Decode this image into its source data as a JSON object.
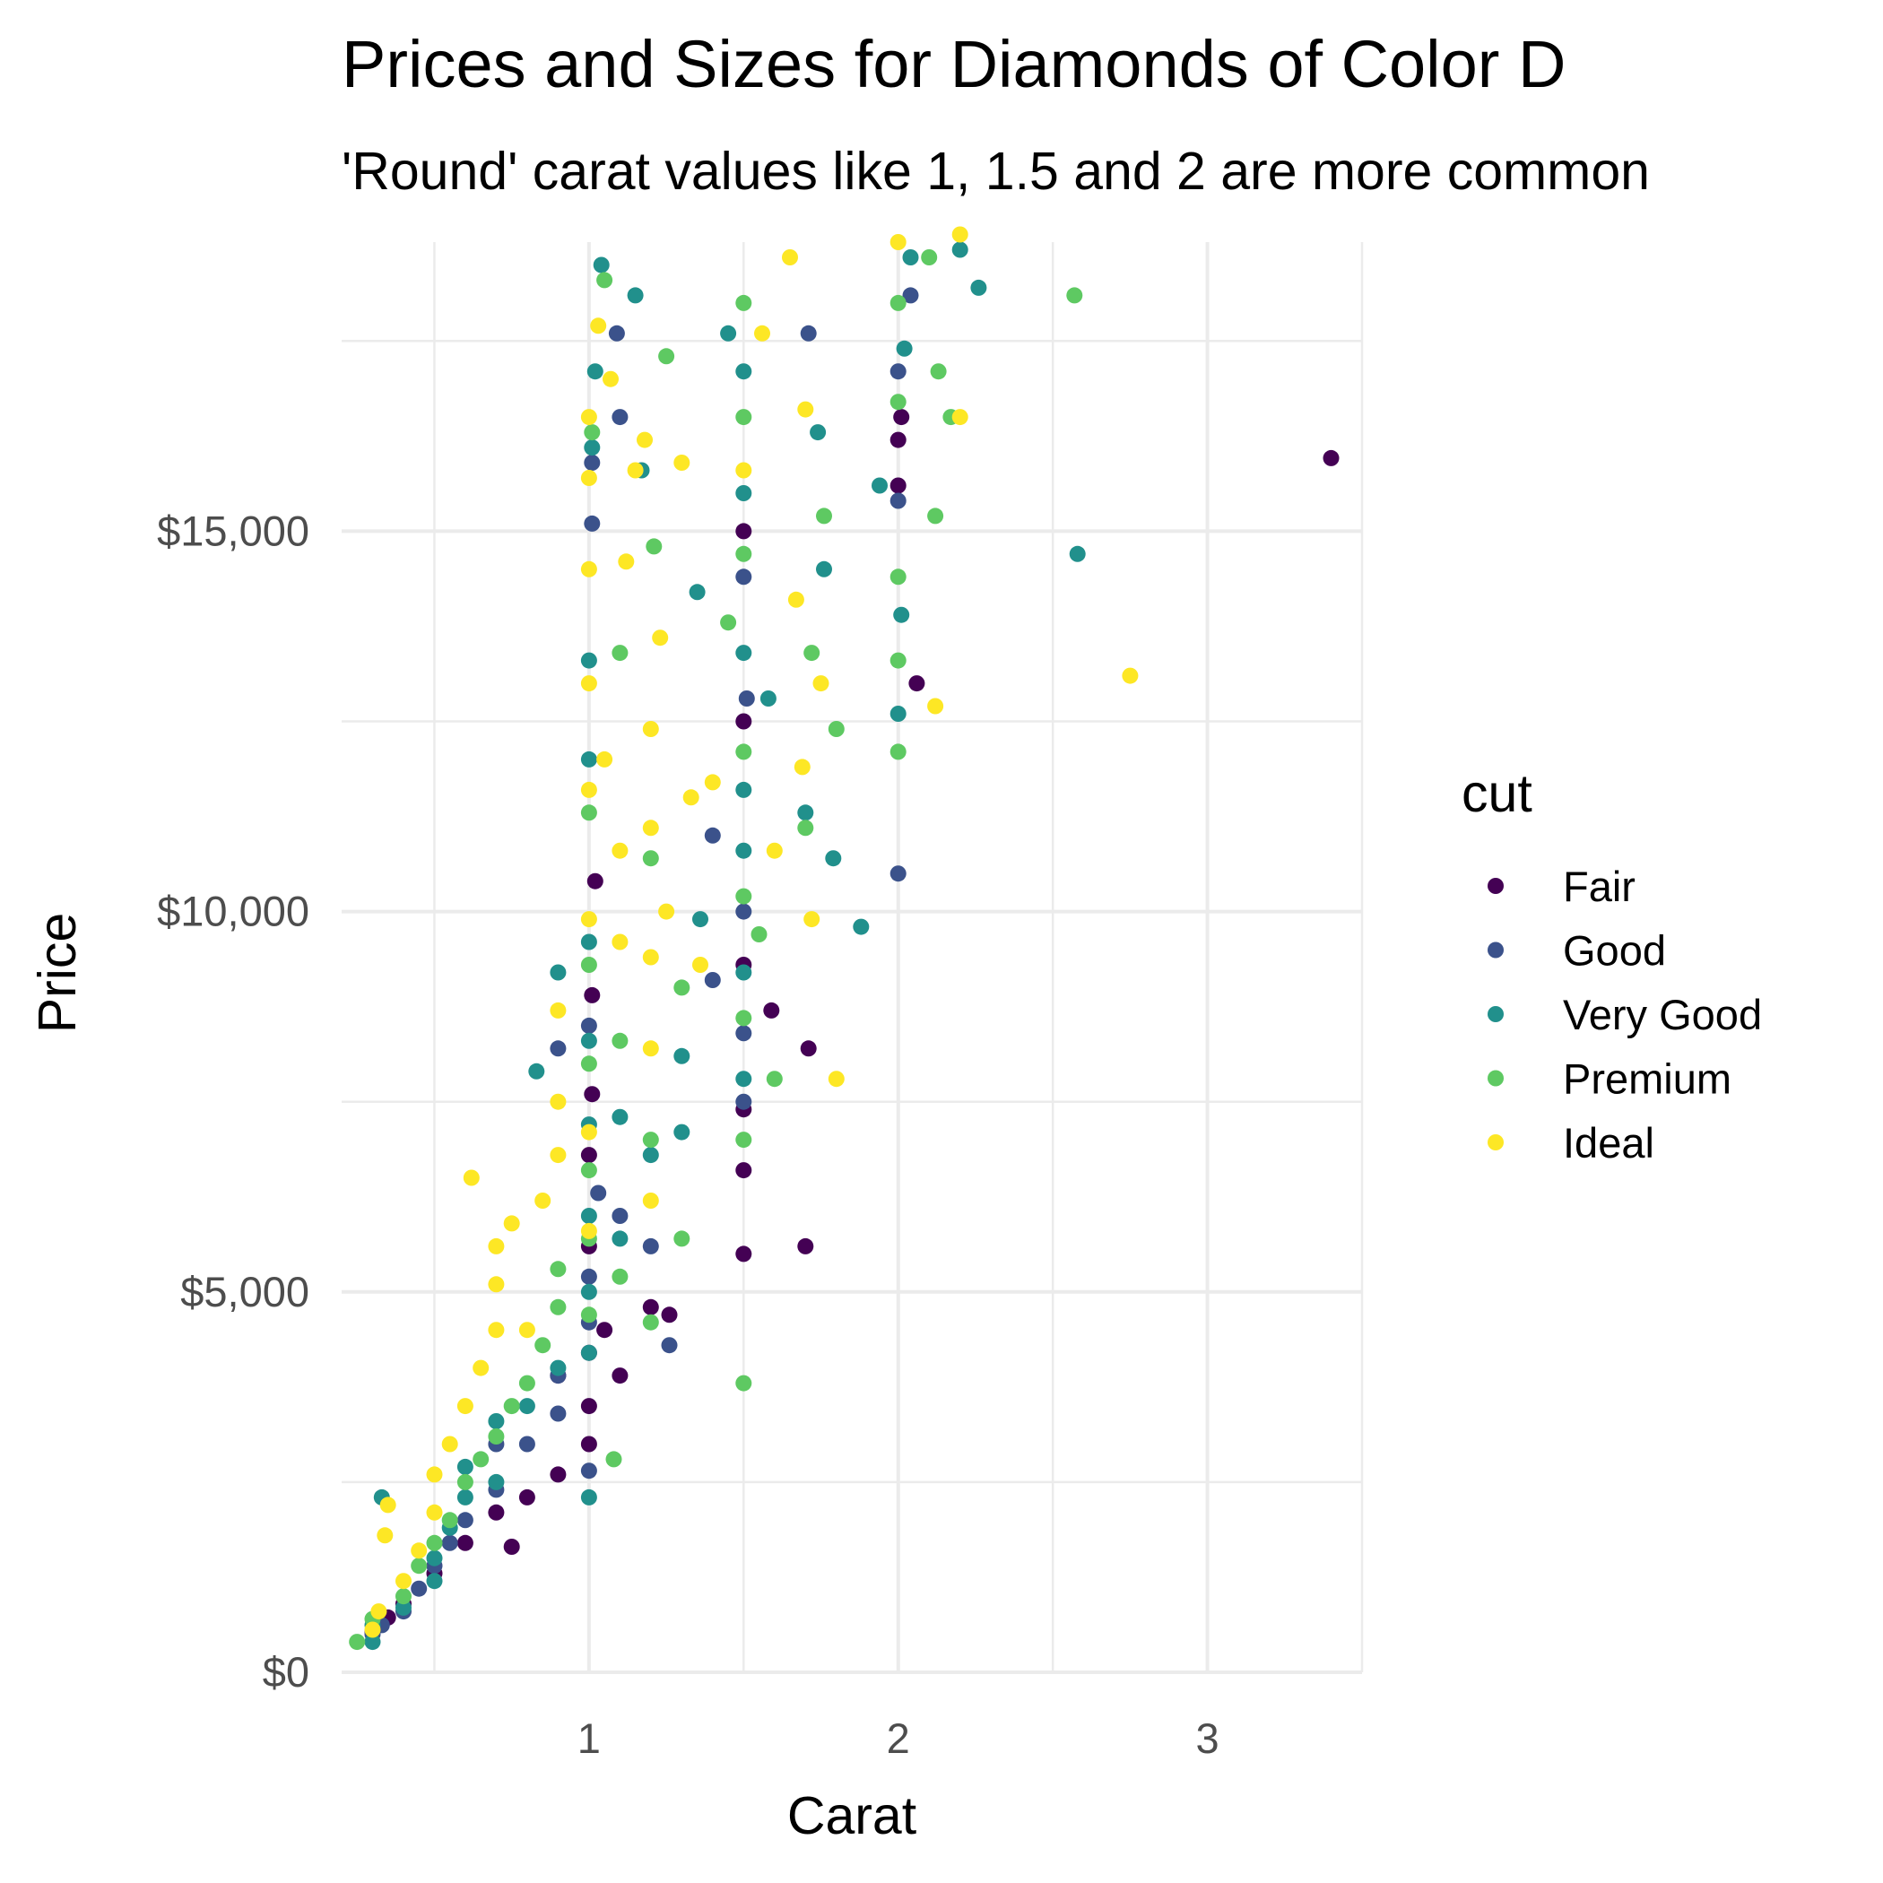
{
  "chart_data": {
    "type": "scatter",
    "title": "Prices and Sizes for Diamonds of Color D",
    "subtitle": "'Round' carat values like 1, 1.5 and 2 are more common",
    "xlabel": "Carat",
    "ylabel": "Price",
    "xlim": [
      0.2,
      3.5
    ],
    "ylim": [
      0,
      18800
    ],
    "x_ticks": [
      1,
      2,
      3
    ],
    "x_tick_labels": [
      "1",
      "2",
      "3"
    ],
    "x_minor_ticks": [
      0.5,
      1.5,
      2.5,
      3.5
    ],
    "y_ticks": [
      0,
      5000,
      10000,
      15000
    ],
    "y_tick_labels": [
      "$0",
      "$5,000",
      "$10,000",
      "$15,000"
    ],
    "y_minor_ticks": [
      2500,
      7500,
      12500,
      17500
    ],
    "grid": true,
    "legend_position": "right",
    "legend_title": "cut",
    "series": [
      {
        "name": "Fair",
        "color": "#440154",
        "points": [
          [
            0.3,
            540
          ],
          [
            0.35,
            720
          ],
          [
            0.4,
            900
          ],
          [
            0.5,
            1300
          ],
          [
            0.6,
            1700
          ],
          [
            0.7,
            2100
          ],
          [
            0.75,
            1650
          ],
          [
            0.8,
            2300
          ],
          [
            0.9,
            2600
          ],
          [
            0.9,
            3900
          ],
          [
            1.0,
            3000
          ],
          [
            1.0,
            3500
          ],
          [
            1.0,
            4200
          ],
          [
            1.0,
            5600
          ],
          [
            1.0,
            6800
          ],
          [
            1.01,
            7600
          ],
          [
            1.01,
            8900
          ],
          [
            1.02,
            10400
          ],
          [
            1.05,
            4500
          ],
          [
            1.1,
            3900
          ],
          [
            1.2,
            4800
          ],
          [
            1.26,
            4700
          ],
          [
            1.5,
            5500
          ],
          [
            1.5,
            6600
          ],
          [
            1.5,
            7400
          ],
          [
            1.5,
            9300
          ],
          [
            1.5,
            12500
          ],
          [
            1.5,
            15000
          ],
          [
            1.59,
            8700
          ],
          [
            1.7,
            5600
          ],
          [
            1.71,
            8200
          ],
          [
            2.0,
            15600
          ],
          [
            2.0,
            16200
          ],
          [
            2.01,
            16500
          ],
          [
            2.06,
            13000
          ],
          [
            3.4,
            15960
          ]
        ]
      },
      {
        "name": "Good",
        "color": "#3b528b",
        "points": [
          [
            0.3,
            500
          ],
          [
            0.33,
            620
          ],
          [
            0.4,
            800
          ],
          [
            0.45,
            1100
          ],
          [
            0.5,
            1400
          ],
          [
            0.55,
            1700
          ],
          [
            0.6,
            2000
          ],
          [
            0.7,
            2400
          ],
          [
            0.7,
            3000
          ],
          [
            0.8,
            3000
          ],
          [
            0.9,
            3400
          ],
          [
            0.9,
            3900
          ],
          [
            0.9,
            8200
          ],
          [
            1.0,
            2650
          ],
          [
            1.0,
            4600
          ],
          [
            1.0,
            5200
          ],
          [
            1.0,
            8500
          ],
          [
            1.01,
            15100
          ],
          [
            1.01,
            15900
          ],
          [
            1.03,
            6300
          ],
          [
            1.1,
            6000
          ],
          [
            1.2,
            5600
          ],
          [
            1.26,
            4300
          ],
          [
            1.4,
            9100
          ],
          [
            1.4,
            11000
          ],
          [
            1.5,
            7500
          ],
          [
            1.5,
            8400
          ],
          [
            1.5,
            10000
          ],
          [
            1.51,
            12800
          ],
          [
            1.5,
            14400
          ],
          [
            1.71,
            17600
          ],
          [
            2.0,
            10500
          ],
          [
            2.0,
            17100
          ],
          [
            2.0,
            15400
          ],
          [
            2.04,
            18100
          ],
          [
            1.09,
            17600
          ],
          [
            1.1,
            16500
          ]
        ]
      },
      {
        "name": "Very Good",
        "color": "#21908c",
        "points": [
          [
            0.3,
            400
          ],
          [
            0.3,
            620
          ],
          [
            0.33,
            2300
          ],
          [
            0.4,
            850
          ],
          [
            0.5,
            1200
          ],
          [
            0.5,
            1500
          ],
          [
            0.55,
            1900
          ],
          [
            0.6,
            2300
          ],
          [
            0.6,
            2700
          ],
          [
            0.7,
            2500
          ],
          [
            0.7,
            3300
          ],
          [
            0.8,
            3500
          ],
          [
            0.83,
            7900
          ],
          [
            0.9,
            4000
          ],
          [
            0.9,
            9200
          ],
          [
            1.0,
            2300
          ],
          [
            1.0,
            4200
          ],
          [
            1.0,
            5000
          ],
          [
            1.0,
            6000
          ],
          [
            1.0,
            7200
          ],
          [
            1.0,
            8300
          ],
          [
            1.0,
            9600
          ],
          [
            1.0,
            12000
          ],
          [
            1.0,
            13300
          ],
          [
            1.01,
            16100
          ],
          [
            1.02,
            17100
          ],
          [
            1.04,
            18500
          ],
          [
            1.1,
            5700
          ],
          [
            1.1,
            7300
          ],
          [
            1.15,
            18100
          ],
          [
            1.17,
            15800
          ],
          [
            1.2,
            6800
          ],
          [
            1.3,
            7100
          ],
          [
            1.3,
            8100
          ],
          [
            1.35,
            14200
          ],
          [
            1.36,
            9900
          ],
          [
            1.45,
            17600
          ],
          [
            1.5,
            7800
          ],
          [
            1.5,
            9200
          ],
          [
            1.5,
            10800
          ],
          [
            1.5,
            11600
          ],
          [
            1.5,
            13400
          ],
          [
            1.5,
            15500
          ],
          [
            1.5,
            17100
          ],
          [
            1.58,
            12800
          ],
          [
            1.7,
            11300
          ],
          [
            1.74,
            16300
          ],
          [
            1.76,
            14500
          ],
          [
            1.79,
            10700
          ],
          [
            1.88,
            9800
          ],
          [
            1.94,
            15600
          ],
          [
            2.0,
            12600
          ],
          [
            2.01,
            13900
          ],
          [
            2.02,
            17400
          ],
          [
            2.04,
            18600
          ],
          [
            2.2,
            18700
          ],
          [
            2.26,
            18200
          ],
          [
            2.58,
            14700
          ]
        ]
      },
      {
        "name": "Premium",
        "color": "#5ec962",
        "points": [
          [
            0.25,
            400
          ],
          [
            0.3,
            700
          ],
          [
            0.4,
            1000
          ],
          [
            0.45,
            1400
          ],
          [
            0.5,
            1700
          ],
          [
            0.55,
            2000
          ],
          [
            0.6,
            2500
          ],
          [
            0.65,
            2800
          ],
          [
            0.7,
            3100
          ],
          [
            0.75,
            3500
          ],
          [
            0.8,
            3800
          ],
          [
            0.85,
            4300
          ],
          [
            0.9,
            4800
          ],
          [
            0.9,
            5300
          ],
          [
            1.0,
            4700
          ],
          [
            1.0,
            5700
          ],
          [
            1.0,
            6600
          ],
          [
            1.0,
            8000
          ],
          [
            1.0,
            9300
          ],
          [
            1.0,
            11300
          ],
          [
            1.01,
            16300
          ],
          [
            1.05,
            18300
          ],
          [
            1.08,
            2800
          ],
          [
            1.1,
            5200
          ],
          [
            1.1,
            8300
          ],
          [
            1.1,
            13400
          ],
          [
            1.2,
            4600
          ],
          [
            1.2,
            7000
          ],
          [
            1.2,
            10700
          ],
          [
            1.21,
            14800
          ],
          [
            1.25,
            17300
          ],
          [
            1.3,
            5700
          ],
          [
            1.3,
            9000
          ],
          [
            1.45,
            13800
          ],
          [
            1.5,
            3800
          ],
          [
            1.5,
            7000
          ],
          [
            1.5,
            8600
          ],
          [
            1.5,
            10200
          ],
          [
            1.5,
            12100
          ],
          [
            1.5,
            14700
          ],
          [
            1.5,
            16500
          ],
          [
            1.5,
            18000
          ],
          [
            1.55,
            9700
          ],
          [
            1.6,
            7800
          ],
          [
            1.7,
            11100
          ],
          [
            1.72,
            13400
          ],
          [
            1.76,
            15200
          ],
          [
            1.8,
            12400
          ],
          [
            2.0,
            12100
          ],
          [
            2.0,
            13300
          ],
          [
            2.0,
            14400
          ],
          [
            2.0,
            16700
          ],
          [
            2.0,
            18000
          ],
          [
            2.1,
            18600
          ],
          [
            2.12,
            15200
          ],
          [
            2.13,
            17100
          ],
          [
            2.17,
            16500
          ],
          [
            2.57,
            18100
          ]
        ]
      },
      {
        "name": "Ideal",
        "color": "#fde725",
        "points": [
          [
            0.3,
            560
          ],
          [
            0.32,
            800
          ],
          [
            0.34,
            1800
          ],
          [
            0.35,
            2200
          ],
          [
            0.4,
            1200
          ],
          [
            0.45,
            1600
          ],
          [
            0.5,
            2100
          ],
          [
            0.5,
            2600
          ],
          [
            0.55,
            3000
          ],
          [
            0.6,
            3500
          ],
          [
            0.62,
            6500
          ],
          [
            0.65,
            4000
          ],
          [
            0.7,
            4500
          ],
          [
            0.7,
            5100
          ],
          [
            0.7,
            5600
          ],
          [
            0.75,
            5900
          ],
          [
            0.8,
            4500
          ],
          [
            0.85,
            6200
          ],
          [
            0.9,
            6800
          ],
          [
            0.9,
            7500
          ],
          [
            0.9,
            8700
          ],
          [
            1.0,
            5800
          ],
          [
            1.0,
            7100
          ],
          [
            1.0,
            9900
          ],
          [
            1.0,
            11600
          ],
          [
            1.0,
            13000
          ],
          [
            1.0,
            14500
          ],
          [
            1.0,
            15700
          ],
          [
            1.0,
            16500
          ],
          [
            1.03,
            17700
          ],
          [
            1.05,
            12000
          ],
          [
            1.07,
            17000
          ],
          [
            1.1,
            9600
          ],
          [
            1.1,
            10800
          ],
          [
            1.12,
            14600
          ],
          [
            1.15,
            15800
          ],
          [
            1.18,
            16200
          ],
          [
            1.2,
            6200
          ],
          [
            1.2,
            8200
          ],
          [
            1.2,
            9400
          ],
          [
            1.2,
            11100
          ],
          [
            1.2,
            12400
          ],
          [
            1.23,
            13600
          ],
          [
            1.25,
            10000
          ],
          [
            1.3,
            15900
          ],
          [
            1.33,
            11500
          ],
          [
            1.36,
            9300
          ],
          [
            1.4,
            11700
          ],
          [
            1.5,
            15800
          ],
          [
            1.56,
            17600
          ],
          [
            1.6,
            10800
          ],
          [
            1.65,
            18600
          ],
          [
            1.67,
            14100
          ],
          [
            1.69,
            11900
          ],
          [
            1.7,
            16600
          ],
          [
            1.72,
            9900
          ],
          [
            1.75,
            13000
          ],
          [
            1.8,
            7800
          ],
          [
            2.0,
            18800
          ],
          [
            2.12,
            12700
          ],
          [
            2.2,
            16500
          ],
          [
            2.2,
            18900
          ],
          [
            2.75,
            13100
          ]
        ]
      }
    ]
  }
}
